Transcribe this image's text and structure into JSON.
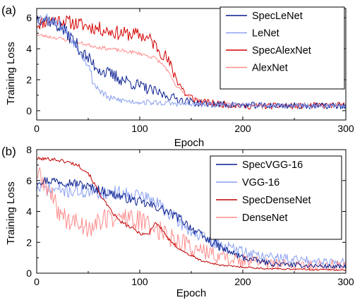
{
  "chart_data": [
    {
      "type": "line",
      "panel_label": "(a)",
      "xlabel": "Epoch",
      "ylabel": "Training Loss",
      "xlim": [
        0,
        300
      ],
      "ylim": [
        -0.6,
        6.6
      ],
      "xticks": [
        "0",
        "100",
        "200",
        "300"
      ],
      "yticks": [
        "0",
        "2",
        "4",
        "6"
      ],
      "legend_position": "top-right",
      "series": [
        {
          "name": "SpecAlexNet",
          "color": "#d40000",
          "noise": 0.45,
          "seed": 11,
          "keypoints": [
            [
              0,
              5.6
            ],
            [
              15,
              5.9
            ],
            [
              25,
              5.8
            ],
            [
              40,
              5.6
            ],
            [
              60,
              5.3
            ],
            [
              80,
              5.0
            ],
            [
              100,
              4.9
            ],
            [
              110,
              4.6
            ],
            [
              125,
              3.5
            ],
            [
              135,
              2.2
            ],
            [
              145,
              1.0
            ],
            [
              160,
              0.55
            ],
            [
              200,
              0.3
            ],
            [
              250,
              0.3
            ],
            [
              300,
              0.35
            ]
          ]
        },
        {
          "name": "AlexNet",
          "color": "#ff8c8c",
          "noise": 0.12,
          "seed": 23,
          "keypoints": [
            [
              0,
              4.9
            ],
            [
              20,
              4.7
            ],
            [
              40,
              4.4
            ],
            [
              60,
              4.1
            ],
            [
              80,
              3.9
            ],
            [
              100,
              3.7
            ],
            [
              115,
              3.4
            ],
            [
              125,
              2.8
            ],
            [
              135,
              1.6
            ],
            [
              150,
              0.8
            ],
            [
              170,
              0.5
            ],
            [
              200,
              0.4
            ],
            [
              300,
              0.3
            ]
          ]
        },
        {
          "name": "SpecLeNet",
          "color": "#0a1f8f",
          "noise": 0.45,
          "seed": 37,
          "keypoints": [
            [
              0,
              6.0
            ],
            [
              10,
              5.9
            ],
            [
              25,
              5.3
            ],
            [
              35,
              4.6
            ],
            [
              45,
              3.7
            ],
            [
              55,
              3.0
            ],
            [
              65,
              2.5
            ],
            [
              80,
              2.1
            ],
            [
              100,
              1.6
            ],
            [
              120,
              1.1
            ],
            [
              140,
              0.7
            ],
            [
              160,
              0.45
            ],
            [
              200,
              0.35
            ],
            [
              300,
              0.3
            ]
          ]
        },
        {
          "name": "LeNet",
          "color": "#8aa0f0",
          "noise": 0.35,
          "seed": 53,
          "keypoints": [
            [
              0,
              6.0
            ],
            [
              10,
              6.0
            ],
            [
              20,
              5.7
            ],
            [
              30,
              5.0
            ],
            [
              40,
              4.1
            ],
            [
              50,
              3.0
            ],
            [
              55,
              1.8
            ],
            [
              60,
              1.4
            ],
            [
              70,
              0.8
            ],
            [
              90,
              0.6
            ],
            [
              120,
              0.5
            ],
            [
              150,
              0.4
            ],
            [
              200,
              0.35
            ],
            [
              300,
              0.3
            ]
          ]
        }
      ]
    },
    {
      "type": "line",
      "panel_label": "(b)",
      "xlabel": "Epoch",
      "ylabel": "Training Loss",
      "xlim": [
        0,
        300
      ],
      "ylim": [
        0,
        8
      ],
      "xticks": [
        "0",
        "100",
        "200",
        "300"
      ],
      "yticks": [
        "0",
        "2",
        "4",
        "6",
        "8"
      ],
      "legend_position": "top-right",
      "series": [
        {
          "name": "VGG-16",
          "color": "#8aa0f0",
          "noise": 0.45,
          "seed": 71,
          "keypoints": [
            [
              0,
              5.5
            ],
            [
              20,
              5.4
            ],
            [
              40,
              5.3
            ],
            [
              60,
              5.2
            ],
            [
              80,
              5.2
            ],
            [
              100,
              5.1
            ],
            [
              120,
              4.4
            ],
            [
              140,
              3.2
            ],
            [
              160,
              2.3
            ],
            [
              180,
              1.8
            ],
            [
              200,
              1.4
            ],
            [
              220,
              1.1
            ],
            [
              250,
              0.9
            ],
            [
              300,
              0.7
            ]
          ]
        },
        {
          "name": "DenseNet",
          "color": "#ff8c8c",
          "noise": 0.7,
          "seed": 89,
          "keypoints": [
            [
              0,
              6.5
            ],
            [
              10,
              5.5
            ],
            [
              20,
              4.2
            ],
            [
              30,
              3.4
            ],
            [
              50,
              3.0
            ],
            [
              70,
              3.6
            ],
            [
              90,
              3.6
            ],
            [
              110,
              3.1
            ],
            [
              130,
              2.4
            ],
            [
              150,
              1.7
            ],
            [
              170,
              1.2
            ],
            [
              200,
              0.8
            ],
            [
              250,
              0.5
            ],
            [
              300,
              0.5
            ]
          ]
        },
        {
          "name": "SpecVGG-16",
          "color": "#0a1f8f",
          "noise": 0.3,
          "seed": 97,
          "keypoints": [
            [
              0,
              6.0
            ],
            [
              20,
              6.0
            ],
            [
              40,
              5.8
            ],
            [
              60,
              5.4
            ],
            [
              80,
              5.0
            ],
            [
              100,
              4.6
            ],
            [
              120,
              4.2
            ],
            [
              140,
              3.5
            ],
            [
              160,
              2.4
            ],
            [
              180,
              1.6
            ],
            [
              200,
              1.0
            ],
            [
              230,
              0.6
            ],
            [
              260,
              0.5
            ],
            [
              300,
              0.4
            ]
          ]
        },
        {
          "name": "SpecDenseNet",
          "color": "#c00000",
          "noise": 0.12,
          "seed": 101,
          "keypoints": [
            [
              0,
              7.4
            ],
            [
              15,
              7.4
            ],
            [
              30,
              7.2
            ],
            [
              40,
              7.0
            ],
            [
              50,
              6.5
            ],
            [
              60,
              5.3
            ],
            [
              70,
              4.2
            ],
            [
              80,
              3.4
            ],
            [
              90,
              3.0
            ],
            [
              100,
              2.6
            ],
            [
              108,
              2.5
            ],
            [
              115,
              3.3
            ],
            [
              122,
              2.8
            ],
            [
              130,
              2.0
            ],
            [
              145,
              1.3
            ],
            [
              160,
              0.8
            ],
            [
              180,
              0.5
            ],
            [
              220,
              0.3
            ],
            [
              300,
              0.2
            ]
          ]
        }
      ]
    }
  ]
}
